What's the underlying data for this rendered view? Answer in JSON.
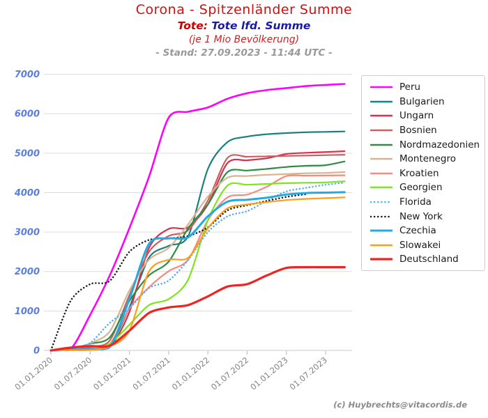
{
  "header": {
    "title": "Corona - Spitzenländer Summe",
    "subtitle_prefix": "Tote:",
    "subtitle_metric": " Tote lfd. Summe",
    "unit_line": "(je 1 Mio Bevölkerung)",
    "stand_line": "- Stand: 27.09.2023 - 11:44 UTC -"
  },
  "footer": {
    "credit": "(c) Huybrechts@vitacordis.de"
  },
  "colors": {
    "title": "#cc1111",
    "subtitle_prefix": "#cc0000",
    "subtitle_metric": "#1a1aa6",
    "unit_line": "#cc2222",
    "stand_line": "#999999",
    "y_tick_label": "#5a7edc",
    "x_tick_label": "#828282",
    "grid": "#dcdcdc",
    "axis": "#c8c8c8",
    "tick_mark": "#c0c0c0",
    "credit": "#8a8a8a",
    "legend_border": "#cccccc"
  },
  "chart_data": {
    "type": "line",
    "title": "Corona - Spitzenländer Summe",
    "subtitle": "Tote: Tote lfd. Summe (je 1 Mio Bevölkerung)",
    "stand": "27.09.2023 - 11:44 UTC",
    "xlabel": "",
    "ylabel": "",
    "grid": true,
    "legend_position": "right",
    "ylim": [
      0,
      7000
    ],
    "y_ticks": [
      0,
      1000,
      2000,
      3000,
      4000,
      5000,
      6000,
      7000
    ],
    "x_tick_labels": [
      "01.01.2020",
      "01.07.2020",
      "01.01.2021",
      "01.07.2021",
      "01.01.2022",
      "01.07.2022",
      "01.01.2023",
      "01.07.2023"
    ],
    "x_tick_months": [
      0,
      6,
      12,
      18,
      24,
      30,
      36,
      42
    ],
    "x_months": [
      0,
      3,
      6,
      9,
      12,
      15,
      18,
      21,
      24,
      27,
      30,
      33,
      36,
      39,
      42,
      44.9
    ],
    "series": [
      {
        "name": "Peru",
        "color": "#ff00ff",
        "width": 2.6,
        "dash": "solid",
        "values": [
          0,
          30,
          900,
          1900,
          3100,
          4400,
          5900,
          6050,
          6160,
          6380,
          6520,
          6600,
          6650,
          6700,
          6730,
          6755
        ]
      },
      {
        "name": "Bulgarien",
        "color": "#1a7f80",
        "width": 2.2,
        "dash": "solid",
        "values": [
          0,
          10,
          40,
          130,
          1090,
          2350,
          2650,
          2900,
          4600,
          5280,
          5420,
          5480,
          5510,
          5530,
          5540,
          5550
        ]
      },
      {
        "name": "Ungarn",
        "color": "#d9304f",
        "width": 2.2,
        "dash": "solid",
        "values": [
          0,
          40,
          60,
          90,
          975,
          2600,
          3080,
          3120,
          3700,
          4750,
          4820,
          4870,
          4980,
          5010,
          5030,
          5050
        ]
      },
      {
        "name": "Bosnien",
        "color": "#cd5e5e",
        "width": 2.2,
        "dash": "solid",
        "values": [
          0,
          20,
          100,
          250,
          1400,
          2500,
          2900,
          3050,
          3800,
          4880,
          4910,
          4920,
          4930,
          4940,
          4950,
          4960
        ]
      },
      {
        "name": "Nordmazedonien",
        "color": "#2e8b44",
        "width": 2.2,
        "dash": "solid",
        "values": [
          0,
          30,
          170,
          330,
          1250,
          1900,
          2250,
          3100,
          3700,
          4520,
          4560,
          4600,
          4650,
          4680,
          4695,
          4790
        ]
      },
      {
        "name": "Montenegro",
        "color": "#d8b48e",
        "width": 2.2,
        "dash": "solid",
        "values": [
          0,
          10,
          180,
          480,
          1515,
          2300,
          2600,
          3200,
          3900,
          4380,
          4420,
          4450,
          4470,
          4490,
          4500,
          4520
        ]
      },
      {
        "name": "Kroatien",
        "color": "#f9897d",
        "width": 2.2,
        "dash": "solid",
        "values": [
          0,
          25,
          50,
          160,
          1060,
          1600,
          2010,
          2300,
          3300,
          3880,
          3950,
          4150,
          4420,
          4430,
          4435,
          4440
        ]
      },
      {
        "name": "Georgien",
        "color": "#7ce619",
        "width": 2.2,
        "dash": "solid",
        "values": [
          0,
          5,
          30,
          170,
          650,
          1150,
          1300,
          1800,
          3300,
          4180,
          4200,
          4220,
          4240,
          4250,
          4260,
          4290
        ]
      },
      {
        "name": "Florida",
        "color": "#4facf7",
        "width": 2.5,
        "dash": "dotted",
        "values": [
          0,
          45,
          190,
          700,
          1070,
          1580,
          1770,
          2300,
          3000,
          3400,
          3530,
          3790,
          4030,
          4120,
          4200,
          4250
        ]
      },
      {
        "name": "New York",
        "color": "#1a1a1a",
        "width": 2.5,
        "dash": "dotted",
        "values": [
          0,
          1250,
          1680,
          1760,
          2500,
          2800,
          2840,
          2900,
          3120,
          3550,
          3680,
          3790,
          3890,
          3960,
          null,
          null
        ]
      },
      {
        "name": "Czechia",
        "color": "#25a9e0",
        "width": 3.0,
        "dash": "solid",
        "values": [
          0,
          20,
          35,
          80,
          1300,
          2700,
          2840,
          2870,
          3400,
          3770,
          3820,
          3870,
          3950,
          3990,
          4000,
          4010
        ]
      },
      {
        "name": "Slowakei",
        "color": "#ff9c1a",
        "width": 2.2,
        "dash": "solid",
        "values": [
          0,
          5,
          10,
          100,
          500,
          2000,
          2300,
          2350,
          3100,
          3600,
          3700,
          3760,
          3810,
          3840,
          3860,
          3880
        ]
      },
      {
        "name": "Deutschland",
        "color": "#ee2424",
        "width": 3.2,
        "dash": "solid",
        "values": [
          0,
          70,
          110,
          120,
          500,
          950,
          1090,
          1150,
          1370,
          1620,
          1680,
          1900,
          2090,
          2110,
          2110,
          2110
        ]
      }
    ]
  }
}
